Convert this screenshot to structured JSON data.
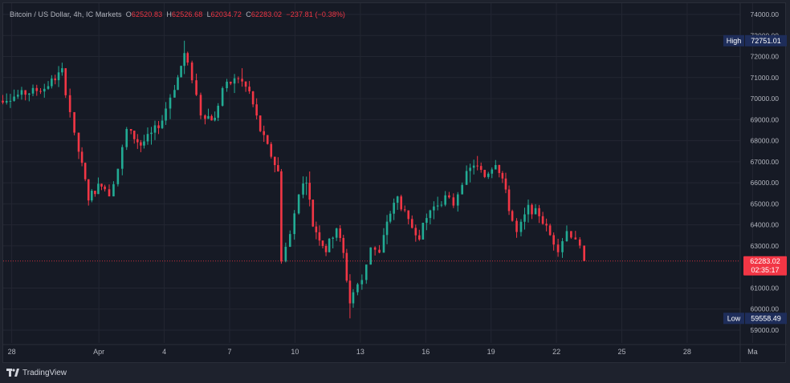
{
  "legend": {
    "symbol": "Bitcoin / US Dollar, 4h, IC Markets",
    "o_label": "O",
    "o_value": "62520.83",
    "h_label": "H",
    "h_value": "62526.68",
    "l_label": "L",
    "l_value": "62034.72",
    "c_label": "C",
    "c_value": "62283.02",
    "change": "−237.81 (−0.38%)"
  },
  "badges": {
    "high_label": "High",
    "high_value": "72751.01",
    "low_label": "Low",
    "low_value": "59558.49",
    "last_price": "62283.02",
    "countdown": "02:35:17"
  },
  "branding": "TradingView",
  "colors": {
    "up": "#22ab94",
    "down": "#f23645",
    "background": "#161a25",
    "grid": "#232632",
    "badge_bg": "#1e2d5a",
    "last_price_bg": "#f23645"
  },
  "chart_data": {
    "type": "candlestick",
    "title": "Bitcoin / US Dollar, 4h, IC Markets",
    "timeframe": "4h",
    "x_tick_labels": [
      "28",
      "Apr",
      "4",
      "7",
      "10",
      "13",
      "16",
      "19",
      "22",
      "25",
      "28",
      "Ma"
    ],
    "y_tick_labels": [
      "59000.00",
      "60000.00",
      "61000.00",
      "63000.00",
      "64000.00",
      "65000.00",
      "66000.00",
      "67000.00",
      "68000.00",
      "69000.00",
      "70000.00",
      "71000.00",
      "72000.00",
      "73000.00",
      "74000.00"
    ],
    "ylim": [
      58500,
      74300
    ],
    "grid": true,
    "high": 72751.01,
    "low": 59558.49,
    "last": 62283.02,
    "series": [
      {
        "name": "BTCUSD",
        "segments": [
          {
            "start_day": -1.0,
            "end_day": 0.9,
            "open": 69800,
            "close": 70300
          },
          {
            "start_day": 0.9,
            "end_day": 1.6,
            "open": 70300,
            "close": 70500
          },
          {
            "start_day": 1.6,
            "end_day": 2.4,
            "open": 70500,
            "close": 71300
          },
          {
            "start_day": 2.4,
            "end_day": 2.8,
            "open": 71300,
            "close": 69400
          },
          {
            "start_day": 2.8,
            "end_day": 3.0,
            "open": 69400,
            "close": 68200
          },
          {
            "start_day": 3.0,
            "end_day": 3.3,
            "open": 68200,
            "close": 66800
          },
          {
            "start_day": 3.3,
            "end_day": 3.6,
            "open": 66800,
            "close": 65300
          },
          {
            "start_day": 3.6,
            "end_day": 4.2,
            "open": 65300,
            "close": 66000
          },
          {
            "start_day": 4.2,
            "end_day": 4.6,
            "open": 66000,
            "close": 65500
          },
          {
            "start_day": 4.6,
            "end_day": 5.0,
            "open": 65500,
            "close": 66700
          },
          {
            "start_day": 5.0,
            "end_day": 5.4,
            "open": 66700,
            "close": 68500
          },
          {
            "start_day": 5.4,
            "end_day": 6.0,
            "open": 68500,
            "close": 67800
          },
          {
            "start_day": 6.0,
            "end_day": 6.5,
            "open": 67800,
            "close": 68300
          },
          {
            "start_day": 6.5,
            "end_day": 7.0,
            "open": 68300,
            "close": 69000
          },
          {
            "start_day": 7.0,
            "end_day": 7.4,
            "open": 69000,
            "close": 70100
          },
          {
            "start_day": 7.4,
            "end_day": 7.7,
            "open": 70100,
            "close": 71000
          },
          {
            "start_day": 7.7,
            "end_day": 8.0,
            "open": 71000,
            "close": 72100
          },
          {
            "start_day": 8.0,
            "end_day": 8.4,
            "open": 72100,
            "close": 71000
          },
          {
            "start_day": 8.4,
            "end_day": 8.8,
            "open": 71000,
            "close": 69300
          },
          {
            "start_day": 8.8,
            "end_day": 9.4,
            "open": 69300,
            "close": 69000
          },
          {
            "start_day": 9.4,
            "end_day": 9.8,
            "open": 69000,
            "close": 70500
          },
          {
            "start_day": 9.8,
            "end_day": 10.5,
            "open": 70500,
            "close": 71000
          },
          {
            "start_day": 10.5,
            "end_day": 11.0,
            "open": 71000,
            "close": 70300
          },
          {
            "start_day": 11.0,
            "end_day": 11.5,
            "open": 70300,
            "close": 68500
          },
          {
            "start_day": 11.5,
            "end_day": 12.0,
            "open": 68500,
            "close": 67300
          },
          {
            "start_day": 12.0,
            "end_day": 12.3,
            "open": 67300,
            "close": 66500
          },
          {
            "start_day": 12.3,
            "end_day": 12.5,
            "open": 66500,
            "close": 62400
          },
          {
            "start_day": 12.5,
            "end_day": 12.9,
            "open": 62400,
            "close": 63500
          },
          {
            "start_day": 12.9,
            "end_day": 13.3,
            "open": 63500,
            "close": 65600
          },
          {
            "start_day": 13.3,
            "end_day": 13.6,
            "open": 65600,
            "close": 66200
          },
          {
            "start_day": 13.6,
            "end_day": 13.9,
            "open": 66200,
            "close": 64000
          },
          {
            "start_day": 13.9,
            "end_day": 14.5,
            "open": 64000,
            "close": 62800
          },
          {
            "start_day": 14.5,
            "end_day": 15.0,
            "open": 62800,
            "close": 63900
          },
          {
            "start_day": 15.0,
            "end_day": 15.3,
            "open": 63900,
            "close": 62600
          },
          {
            "start_day": 15.3,
            "end_day": 15.6,
            "open": 62600,
            "close": 60300
          },
          {
            "start_day": 15.6,
            "end_day": 15.8,
            "open": 60300,
            "close": 60800
          },
          {
            "start_day": 15.8,
            "end_day": 16.2,
            "open": 60800,
            "close": 61400
          },
          {
            "start_day": 16.2,
            "end_day": 16.6,
            "open": 61400,
            "close": 63000
          },
          {
            "start_day": 16.6,
            "end_day": 17.0,
            "open": 63000,
            "close": 62600
          },
          {
            "start_day": 17.0,
            "end_day": 17.3,
            "open": 62600,
            "close": 64200
          },
          {
            "start_day": 17.3,
            "end_day": 17.8,
            "open": 64200,
            "close": 65300
          },
          {
            "start_day": 17.8,
            "end_day": 18.3,
            "open": 65300,
            "close": 64100
          },
          {
            "start_day": 18.3,
            "end_day": 18.8,
            "open": 64100,
            "close": 63500
          },
          {
            "start_day": 18.8,
            "end_day": 19.3,
            "open": 63500,
            "close": 64700
          },
          {
            "start_day": 19.3,
            "end_day": 20.0,
            "open": 64700,
            "close": 65300
          },
          {
            "start_day": 20.0,
            "end_day": 20.4,
            "open": 65300,
            "close": 65000
          },
          {
            "start_day": 20.4,
            "end_day": 20.8,
            "open": 65000,
            "close": 66100
          },
          {
            "start_day": 20.8,
            "end_day": 21.3,
            "open": 66100,
            "close": 66900
          },
          {
            "start_day": 21.3,
            "end_day": 21.8,
            "open": 66900,
            "close": 66300
          },
          {
            "start_day": 21.8,
            "end_day": 22.3,
            "open": 66300,
            "close": 67000
          },
          {
            "start_day": 22.3,
            "end_day": 22.6,
            "open": 67000,
            "close": 66200
          },
          {
            "start_day": 22.6,
            "end_day": 22.9,
            "open": 66200,
            "close": 64800
          },
          {
            "start_day": 22.9,
            "end_day": 23.3,
            "open": 64800,
            "close": 63600
          },
          {
            "start_day": 23.3,
            "end_day": 23.8,
            "open": 63600,
            "close": 64800
          },
          {
            "start_day": 23.8,
            "end_day": 24.3,
            "open": 64800,
            "close": 64500
          },
          {
            "start_day": 24.3,
            "end_day": 24.8,
            "open": 64500,
            "close": 63500
          },
          {
            "start_day": 24.8,
            "end_day": 25.2,
            "open": 63500,
            "close": 62900
          },
          {
            "start_day": 25.2,
            "end_day": 25.6,
            "open": 62900,
            "close": 63700
          },
          {
            "start_day": 25.6,
            "end_day": 26.0,
            "open": 63700,
            "close": 63400
          },
          {
            "start_day": 26.0,
            "end_day": 26.4,
            "open": 63400,
            "close": 62280
          }
        ]
      }
    ]
  }
}
